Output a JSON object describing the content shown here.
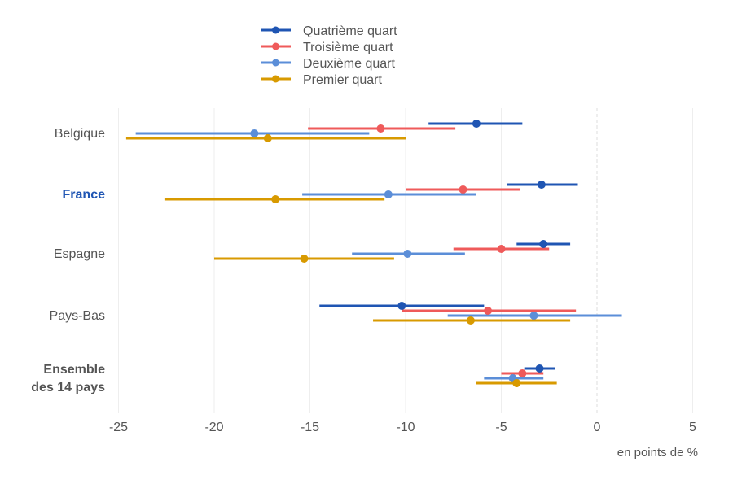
{
  "chart_data": {
    "type": "dot-range",
    "xlabel": "en points de %",
    "xlim": [
      -25.5,
      5
    ],
    "xticks": [
      -25,
      -20,
      -15,
      -10,
      -5,
      0,
      5
    ],
    "tick_labels": [
      "-25",
      "-20",
      "-15",
      "-10",
      "-5",
      "0",
      "5"
    ],
    "legend_position": "top-center",
    "series": [
      {
        "name": "Quatrième quart",
        "color": "#1f55b3"
      },
      {
        "name": "Troisième quart",
        "color": "#ef5a5a"
      },
      {
        "name": "Deuxième quart",
        "color": "#5b8ed8"
      },
      {
        "name": "Premier quart",
        "color": "#d89a00"
      }
    ],
    "categories": [
      {
        "label_lines": [
          "Belgique"
        ],
        "style": "normal",
        "values": [
          {
            "low": -8.8,
            "point": -6.3,
            "high": -3.9
          },
          {
            "low": -15.1,
            "point": -11.3,
            "high": -7.4
          },
          {
            "low": -24.1,
            "point": -17.9,
            "high": -11.9
          },
          {
            "low": -24.6,
            "point": -17.2,
            "high": -10.0
          }
        ]
      },
      {
        "label_lines": [
          "France"
        ],
        "style": "highlight",
        "values": [
          {
            "low": -4.7,
            "point": -2.9,
            "high": -1.0
          },
          {
            "low": -10.0,
            "point": -7.0,
            "high": -4.0
          },
          {
            "low": -15.4,
            "point": -10.9,
            "high": -6.3
          },
          {
            "low": -22.6,
            "point": -16.8,
            "high": -11.1
          }
        ]
      },
      {
        "label_lines": [
          "Espagne"
        ],
        "style": "normal",
        "values": [
          {
            "low": -4.2,
            "point": -2.8,
            "high": -1.4
          },
          {
            "low": -7.5,
            "point": -5.0,
            "high": -2.5
          },
          {
            "low": -12.8,
            "point": -9.9,
            "high": -6.9
          },
          {
            "low": -20.0,
            "point": -15.3,
            "high": -10.6
          }
        ]
      },
      {
        "label_lines": [
          "Pays-Bas"
        ],
        "style": "normal",
        "values": [
          {
            "low": -14.5,
            "point": -10.2,
            "high": -5.9
          },
          {
            "low": -10.2,
            "point": -5.7,
            "high": -1.1
          },
          {
            "low": -7.8,
            "point": -3.3,
            "high": 1.3
          },
          {
            "low": -11.7,
            "point": -6.6,
            "high": -1.4
          }
        ]
      },
      {
        "label_lines": [
          "Ensemble",
          "des 14 pays"
        ],
        "style": "bold",
        "values": [
          {
            "low": -3.8,
            "point": -3.0,
            "high": -2.2
          },
          {
            "low": -5.0,
            "point": -3.9,
            "high": -2.8
          },
          {
            "low": -5.9,
            "point": -4.4,
            "high": -2.8
          },
          {
            "low": -6.3,
            "point": -4.2,
            "high": -2.1
          }
        ]
      }
    ]
  }
}
